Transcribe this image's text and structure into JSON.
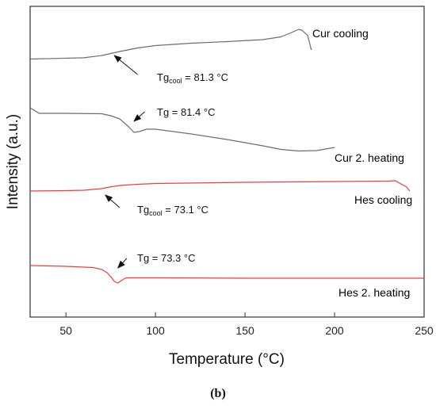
{
  "panel_label": "(b)",
  "chart_data": {
    "type": "line",
    "xlabel": "Temperature (°C)",
    "ylabel": "Intensity (a.u.)",
    "xlim": [
      30,
      250
    ],
    "xticks": [
      50,
      100,
      150,
      200,
      250
    ],
    "yticks": "none",
    "grid": false,
    "colors": {
      "gray": "#6d6d6d",
      "red": "#f03c3c",
      "axis": "#333333"
    },
    "series": [
      {
        "name": "Cur cooling",
        "color": "#6d6d6d",
        "x": [
          30,
          45,
          60,
          70,
          80,
          90,
          100,
          120,
          140,
          160,
          170,
          175,
          180,
          182,
          185,
          187
        ],
        "y": [
          74.5,
          73.7,
          72.9,
          70,
          65,
          60.5,
          57.5,
          54.5,
          52.5,
          50,
          46.5,
          42,
          37,
          38.5,
          45,
          63
        ]
      },
      {
        "name": "Cur 2. heating",
        "color": "#6d6d6d",
        "x": [
          30,
          35,
          50,
          70,
          75,
          80,
          85,
          88,
          91,
          95,
          100,
          120,
          140,
          160,
          170,
          180,
          190,
          195,
          200
        ],
        "y": [
          136,
          143,
          143,
          143.5,
          146,
          150,
          160,
          167,
          166,
          163,
          163,
          169,
          176,
          184,
          188.5,
          190.5,
          190,
          188,
          186
        ]
      },
      {
        "name": "Hes cooling",
        "color": "#f03c3c",
        "x": [
          30,
          50,
          60,
          70,
          73,
          80,
          90,
          100,
          150,
          200,
          230,
          234,
          237,
          240,
          242
        ],
        "y": [
          241,
          240.5,
          240,
          238,
          236.5,
          234,
          232.5,
          231.5,
          230,
          229,
          228.5,
          228,
          232,
          235.5,
          241
        ]
      },
      {
        "name": "Hes 2. heating",
        "color": "#f03c3c",
        "x": [
          30,
          50,
          65,
          70,
          73,
          75,
          77,
          79,
          81,
          83,
          85,
          100,
          150,
          200,
          250
        ],
        "y": [
          335,
          336,
          337.5,
          340,
          344,
          349,
          355,
          357,
          354,
          351,
          350.5,
          350.5,
          351,
          351,
          351
        ]
      }
    ],
    "curve_labels": [
      {
        "text": "Cur cooling",
        "color": "#6d6d6d"
      },
      {
        "text": "Cur 2. heating",
        "color": "#6d6d6d"
      },
      {
        "text": "Hes cooling",
        "color": "#f03c3c"
      },
      {
        "text": "Hes 2. heating",
        "color": "#f03c3c"
      }
    ],
    "annotations": [
      {
        "prefix": "Tg",
        "sub": "cool",
        "value": " = 81.3 °C"
      },
      {
        "prefix": "Tg",
        "sub": "",
        "value": " = 81.4 °C"
      },
      {
        "prefix": "Tg",
        "sub": "cool",
        "value": " = 73.1 °C"
      },
      {
        "prefix": "Tg",
        "sub": "",
        "value": " = 73.3 °C"
      }
    ]
  }
}
